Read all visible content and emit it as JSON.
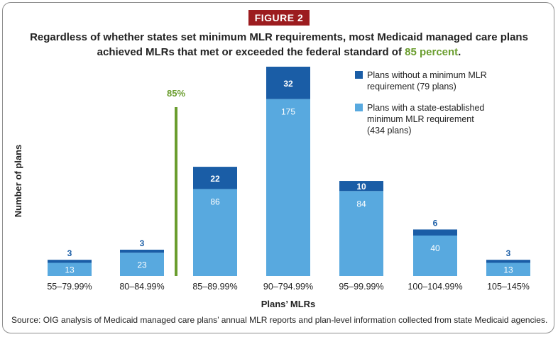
{
  "figure_badge": "FIGURE 2",
  "title_main": "Regardless of whether states set minimum MLR requirements, most Medicaid managed care plans achieved MLRs that met or exceeded the federal standard of ",
  "title_accent": "85 percent",
  "title_end": ".",
  "source": "Source: OIG analysis of Medicaid managed care plans’ annual MLR reports and plan-level information collected from state Medicaid agencies.",
  "colors": {
    "dark": "#1a5da6",
    "light": "#58a9df",
    "accent": "#6a9d2e",
    "badge": "#9c1c1f"
  },
  "chart_data": {
    "type": "bar",
    "stacked": true,
    "xlabel": "Plans’ MLRs",
    "ylabel": "Number of plans",
    "categories": [
      "55–79.99%",
      "80–84.99%",
      "85–89.99%",
      "90–794.99%",
      "95–99.99%",
      "100–104.99%",
      "105–145%"
    ],
    "series": [
      {
        "name": "Plans with a state-established minimum MLR requirement (434 plans)",
        "values": [
          13,
          23,
          86,
          175,
          84,
          40,
          13
        ]
      },
      {
        "name": "Plans without a minimum MLR requirement (79 plans)",
        "values": [
          3,
          3,
          22,
          32,
          10,
          6,
          3
        ]
      }
    ],
    "reference_line": {
      "label": "85%",
      "position": "between 80–84.99% and 85–89.99%"
    },
    "legend": [
      {
        "lines": [
          "Plans without a minimum MLR",
          "requirement (79 plans)"
        ]
      },
      {
        "lines": [
          "Plans with a state-established",
          "minimum MLR requirement",
          "(434 plans)"
        ]
      }
    ],
    "ylim": [
      0,
      207
    ]
  }
}
